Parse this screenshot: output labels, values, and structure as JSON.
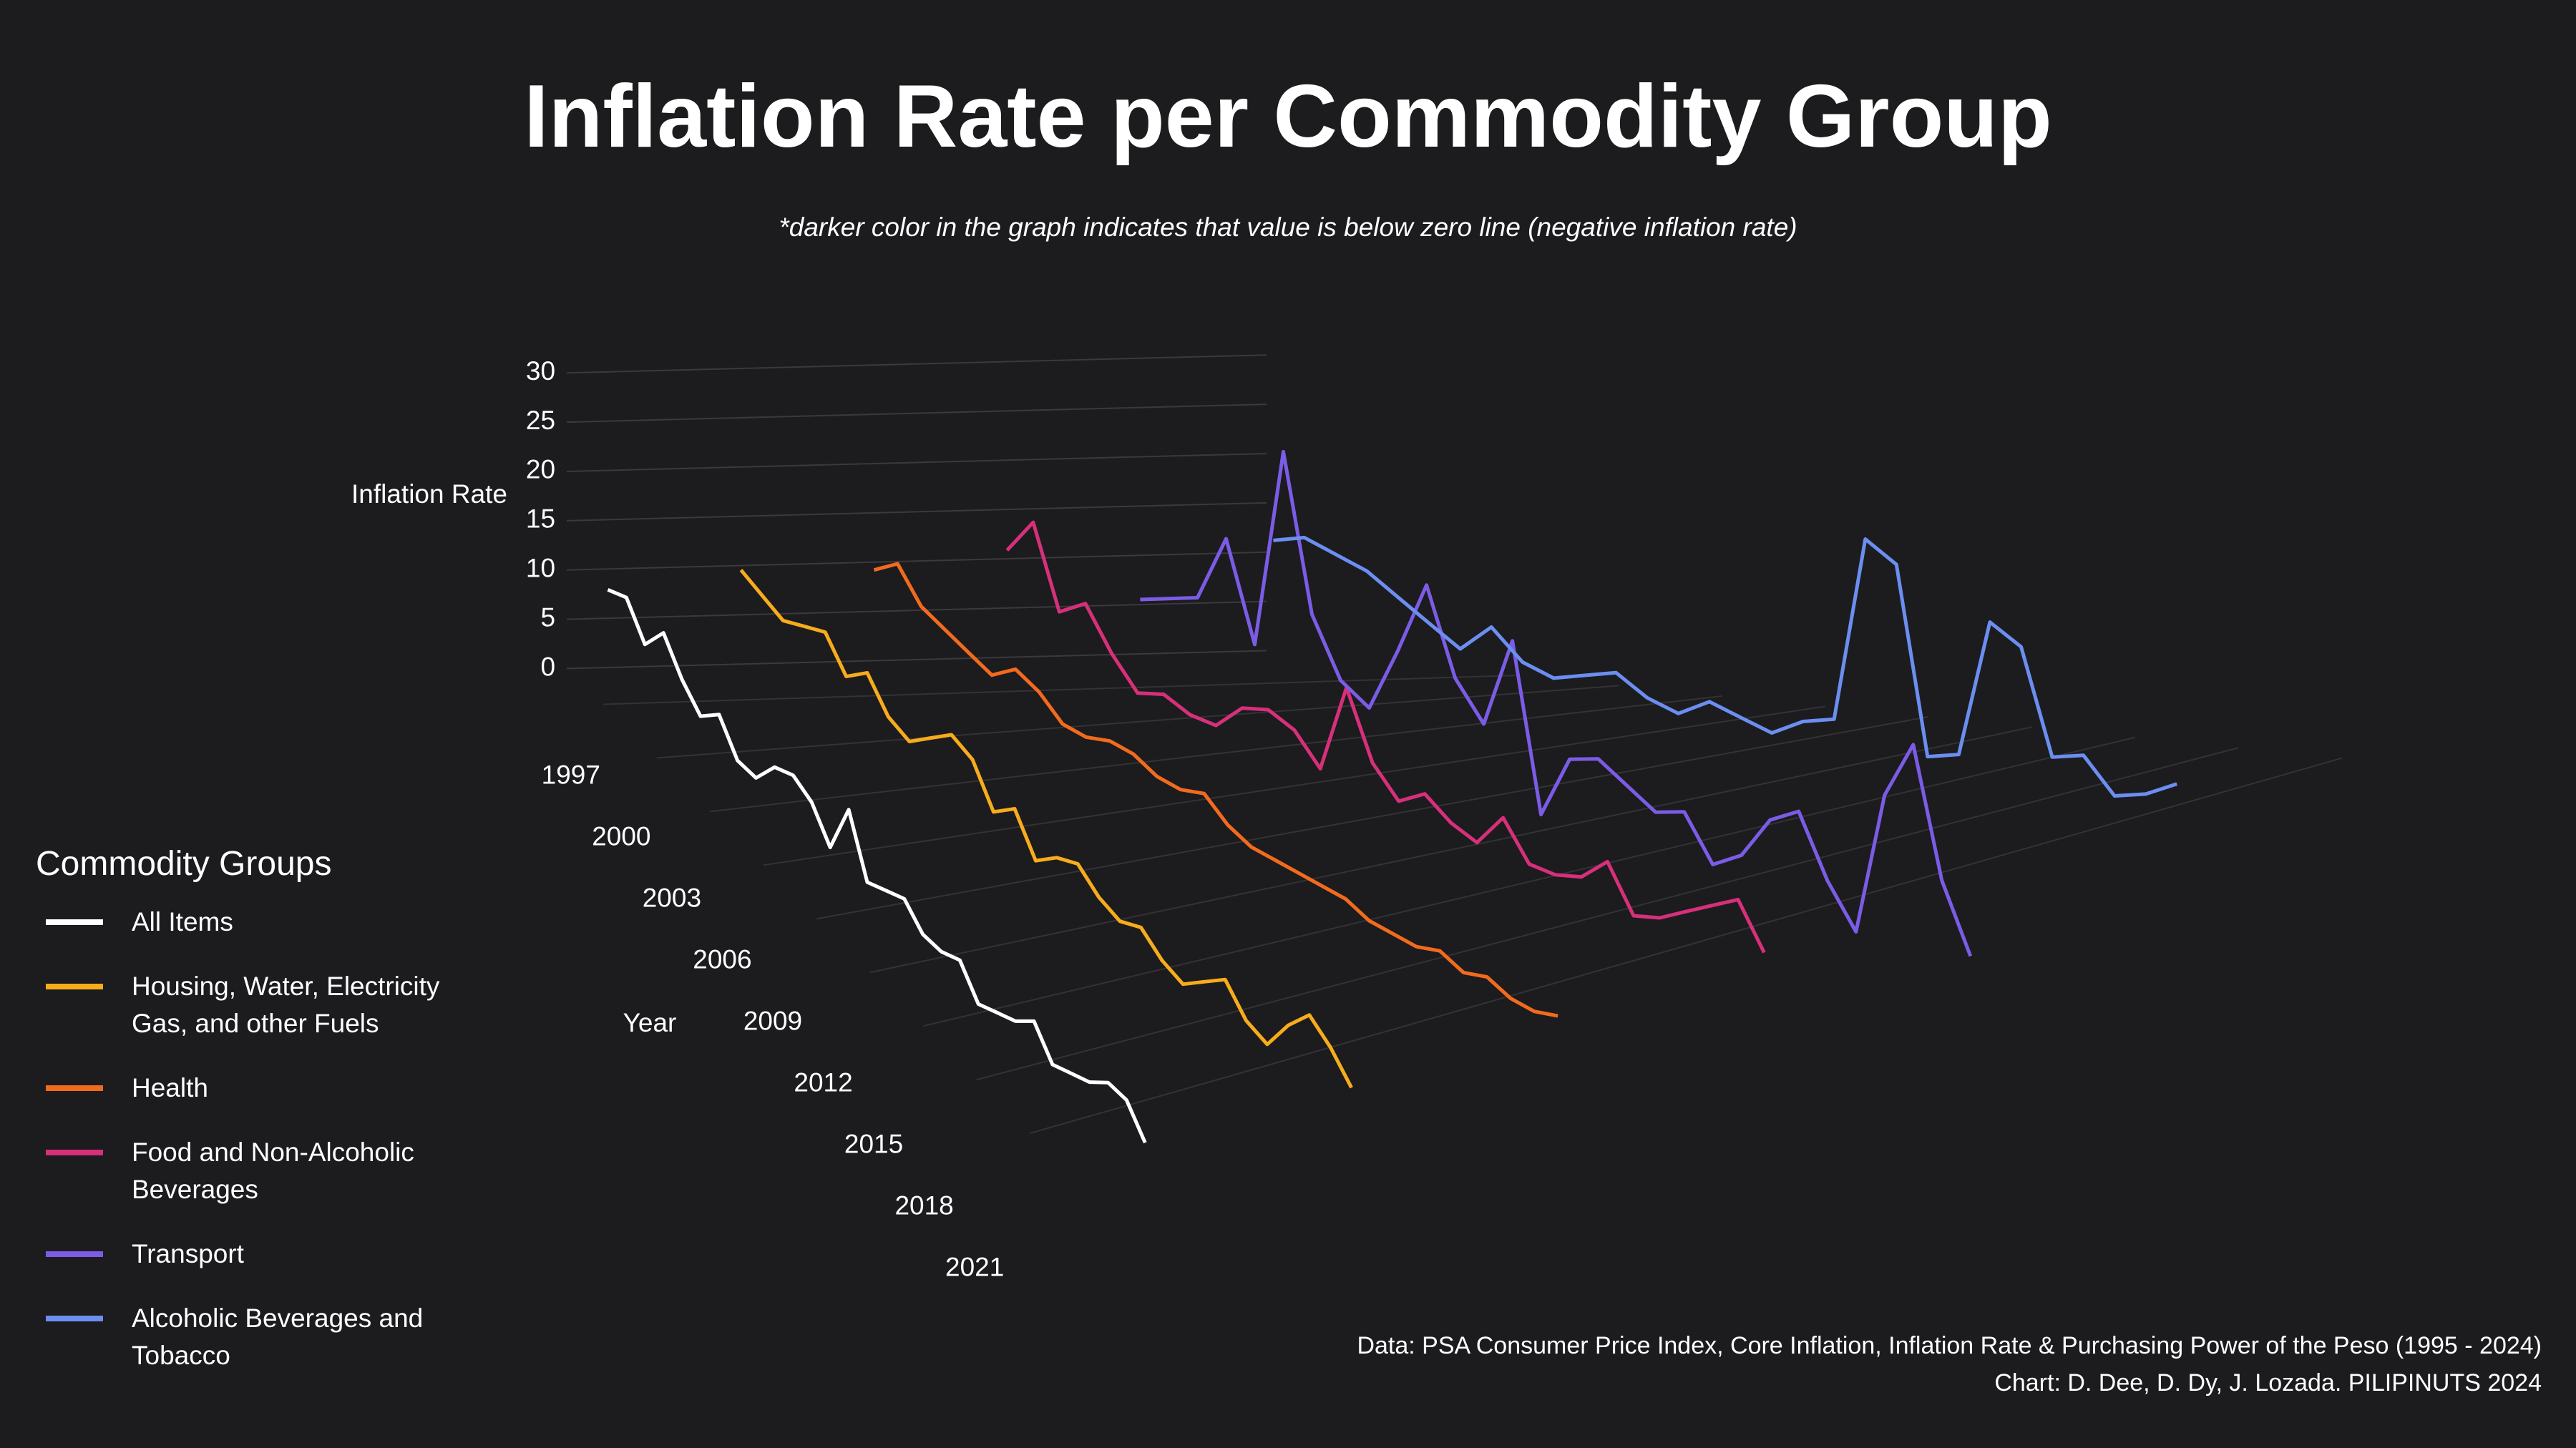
{
  "chart_data": {
    "type": "line3d",
    "title": "Inflation Rate per Commodity Group",
    "subtitle": "*darker color in the graph indicates that value is below zero line (negative inflation rate)",
    "y_label": "Inflation Rate",
    "x_label": "Year",
    "legend_title": "Commodity Groups",
    "source": "Data: PSA Consumer Price Index, Core Inflation, Inflation Rate & Purchasing Power of the Peso (1995 - 2024)",
    "credit": "Chart: D. Dee, D. Dy, J. Lozada. PILIPINUTS 2024",
    "x": [
      1995,
      1996,
      1997,
      1998,
      1999,
      2000,
      2001,
      2002,
      2003,
      2004,
      2005,
      2006,
      2007,
      2008,
      2009,
      2010,
      2011,
      2012,
      2013,
      2014,
      2015,
      2016,
      2017,
      2018,
      2019,
      2020,
      2021,
      2022,
      2023,
      2024
    ],
    "xticks": [
      1997,
      2000,
      2003,
      2006,
      2009,
      2012,
      2015,
      2018,
      2021
    ],
    "ylim": [
      0,
      30
    ],
    "yticks": [
      0,
      5,
      10,
      15,
      20,
      25,
      30
    ],
    "grid": true,
    "legend": "left",
    "series": [
      {
        "name": "All Items",
        "color": "#ffffff",
        "values": [
          8,
          9,
          6,
          9,
          6,
          4,
          6,
          3,
          3,
          6,
          7,
          6,
          3,
          9,
          3,
          4,
          5,
          3,
          3,
          4,
          1,
          2,
          3,
          5,
          2,
          3,
          4,
          6,
          6,
          3
        ]
      },
      {
        "name": "Housing, Water, Electricity Gas, and other Fuels",
        "color": "#f7ac1b",
        "values": [
          10,
          9,
          8,
          9,
          10,
          7,
          9,
          6,
          5,
          7,
          9,
          8,
          4,
          6,
          2,
          4,
          5,
          3,
          2,
          3,
          1,
          0,
          2,
          4,
          1,
          0,
          4,
          7,
          5,
          2
        ]
      },
      {
        "name": "Health",
        "color": "#f26b1d",
        "values": [
          10,
          12,
          9,
          8,
          7,
          6,
          8,
          7,
          5,
          5,
          6,
          6,
          5,
          5,
          6,
          4,
          3,
          3,
          3,
          3,
          3,
          2,
          2,
          2,
          3,
          2,
          3,
          2,
          2,
          3
        ]
      },
      {
        "name": "Food and Non-Alcoholic Beverages",
        "color": "#d6307a",
        "values": [
          12,
          16,
          8,
          10,
          6,
          3,
          4,
          3,
          3,
          6,
          7,
          6,
          3,
          13,
          6,
          3,
          5,
          3,
          2,
          6,
          2,
          2,
          3,
          6,
          1,
          2,
          4,
          6,
          8,
          3
        ]
      },
      {
        "name": "Transport",
        "color": "#7b5ce6",
        "values": [
          7,
          8,
          9,
          16,
          6,
          27,
          11,
          5,
          3,
          10,
          18,
          9,
          5,
          15,
          -3,
          4,
          5,
          3,
          1,
          2,
          -3,
          -1,
          4,
          6,
          -1,
          -6,
          11,
          18,
          3,
          -5
        ]
      },
      {
        "name": "Alcoholic Beverages and Tobacco",
        "color": "#6b8ef0",
        "values": [
          13,
          14,
          13,
          12,
          10,
          8,
          6,
          9,
          6,
          5,
          6,
          7,
          5,
          4,
          6,
          5,
          4,
          6,
          7,
          28,
          26,
          5,
          6,
          22,
          20,
          8,
          9,
          5,
          6,
          8
        ]
      }
    ]
  }
}
